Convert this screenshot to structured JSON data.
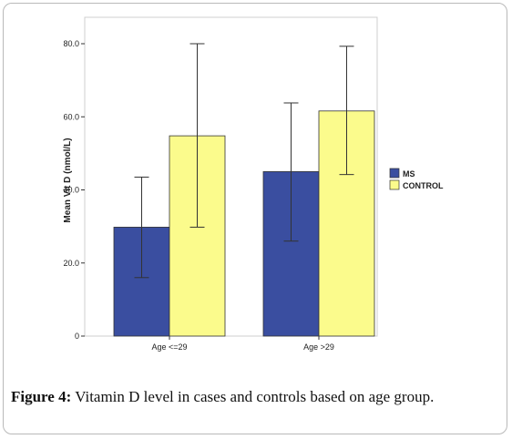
{
  "caption": {
    "label": "Figure 4:",
    "text": " Vitamin D level in cases and controls based on age group."
  },
  "chart_data": {
    "type": "bar",
    "categories": [
      "Age <=29",
      "Age >29"
    ],
    "ylabel": "Mean Vit D (nmol/L)",
    "xlabel": "",
    "ylim": [
      0,
      80
    ],
    "yticks": [
      "0",
      "20.0",
      "40.0",
      "60.0",
      "80.0"
    ],
    "grid": false,
    "legend_position": "right",
    "series": [
      {
        "name": "MS",
        "color": "#3a4ea0",
        "values": [
          29.8,
          45.0
        ],
        "error_low": [
          16.0,
          26.0
        ],
        "error_high": [
          43.5,
          63.8
        ]
      },
      {
        "name": "CONTROL",
        "color": "#fbfb8c",
        "values": [
          54.8,
          61.6
        ],
        "error_low": [
          29.8,
          44.2
        ],
        "error_high": [
          80.0,
          79.3
        ]
      }
    ]
  }
}
